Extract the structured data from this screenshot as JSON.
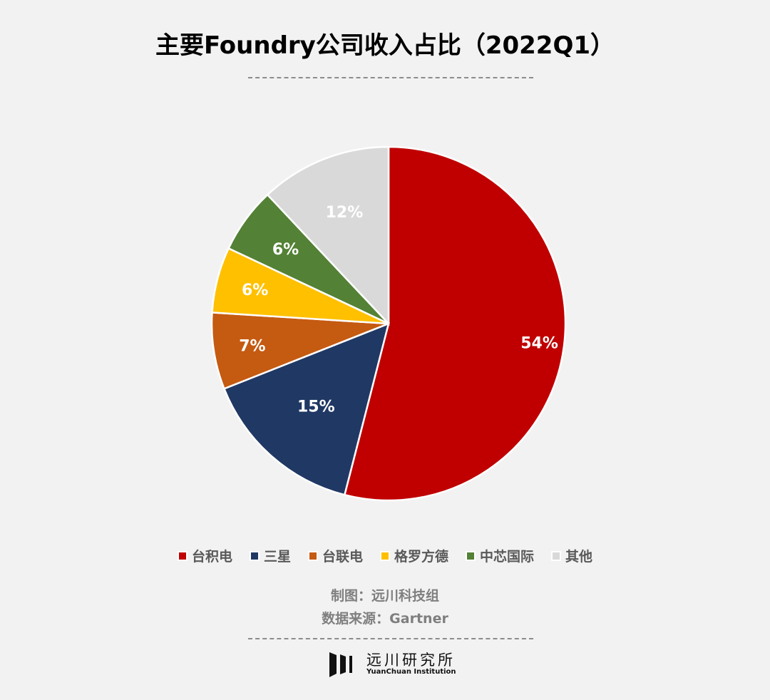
{
  "title": "主要Foundry公司收入占比（2022Q1）",
  "chart_data": {
    "type": "pie",
    "title": "主要Foundry公司收入占比（2022Q1）",
    "categories": [
      "台积电",
      "三星",
      "台联电",
      "格罗方德",
      "中芯国际",
      "其他"
    ],
    "values": [
      54,
      15,
      7,
      6,
      6,
      12
    ],
    "labels": [
      "54%",
      "15%",
      "7%",
      "6%",
      "6%",
      "12%"
    ],
    "colors": [
      "#c00000",
      "#203864",
      "#c55a11",
      "#ffc000",
      "#538135",
      "#d9d9d9"
    ],
    "start_angle": "12 o'clock",
    "direction": "clockwise",
    "legend_position": "bottom"
  },
  "legend": [
    {
      "label": "台积电",
      "color": "#c00000"
    },
    {
      "label": "三星",
      "color": "#203864"
    },
    {
      "label": "台联电",
      "color": "#c55a11"
    },
    {
      "label": "格罗方德",
      "color": "#ffc000"
    },
    {
      "label": "中芯国际",
      "color": "#538135"
    },
    {
      "label": "其他",
      "color": "#d9d9d9"
    }
  ],
  "credits": {
    "maker": "制图：远川科技组",
    "source": "数据来源：Gartner"
  },
  "logo": {
    "name_cn": "远川研究所",
    "name_en": "YuanChuan Institution"
  }
}
